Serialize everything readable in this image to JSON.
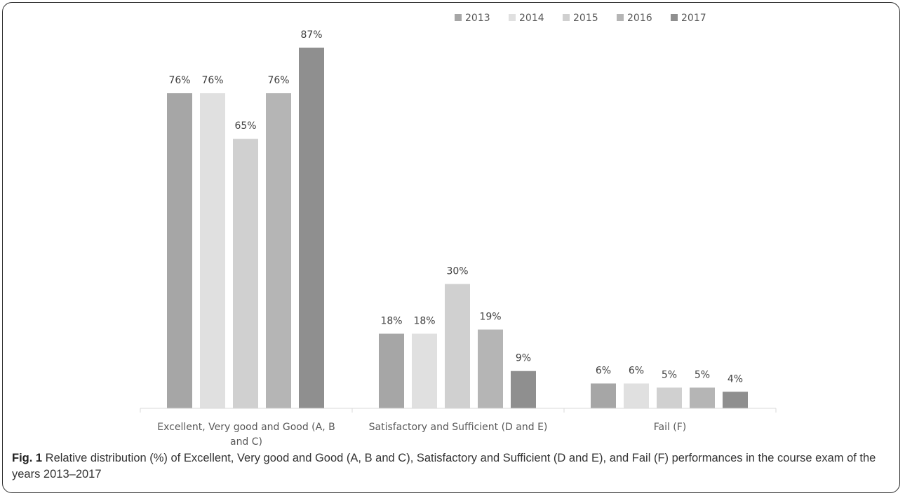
{
  "chart_data": {
    "type": "bar",
    "categories": [
      [
        "Excellent, Very good and Good (A, B",
        "and C)"
      ],
      [
        "Satisfactory and Sufficient (D and E)"
      ],
      [
        "Fail (F)"
      ]
    ],
    "series": [
      {
        "name": "2013",
        "color": "#a6a6a6",
        "values": [
          76,
          18,
          6
        ]
      },
      {
        "name": "2014",
        "color": "#e0e0e0",
        "values": [
          76,
          18,
          6
        ]
      },
      {
        "name": "2015",
        "color": "#d0d0d0",
        "values": [
          65,
          30,
          5
        ]
      },
      {
        "name": "2016",
        "color": "#b5b5b5",
        "values": [
          76,
          19,
          5
        ]
      },
      {
        "name": "2017",
        "color": "#8f8f8f",
        "values": [
          87,
          9,
          4
        ]
      }
    ],
    "value_suffix": "%",
    "ylim": [
      0,
      100
    ],
    "legend_position": "top-right",
    "grid": false
  },
  "caption": {
    "label": "Fig. 1",
    "text": " Relative distribution (%) of Excellent, Very good and Good (A, B and C), Satisfactory and Sufficient (D and E), and Fail (F) performances in the course exam of the years 2013–2017"
  }
}
